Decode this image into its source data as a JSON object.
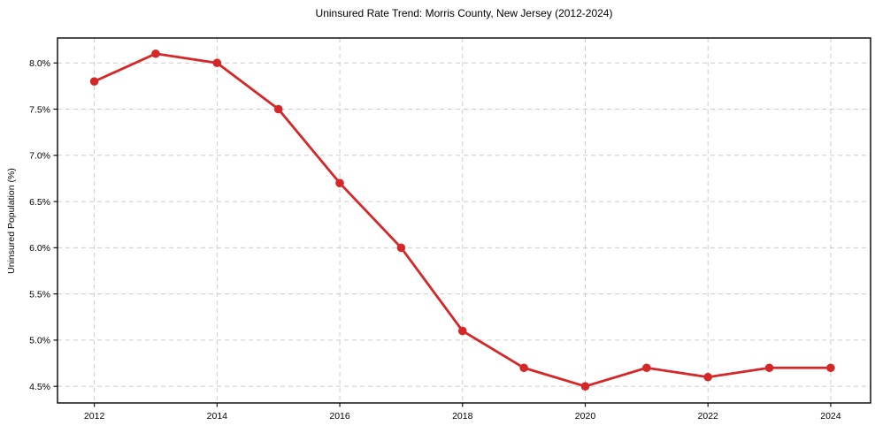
{
  "chart_data": {
    "type": "line",
    "title": "Uninsured Rate Trend: Morris County, New Jersey (2012-2024)",
    "xlabel": "",
    "ylabel": "Uninsured Population (%)",
    "x": [
      2012,
      2013,
      2014,
      2015,
      2016,
      2017,
      2018,
      2019,
      2020,
      2021,
      2022,
      2023,
      2024
    ],
    "series": [
      {
        "name": "Uninsured Rate",
        "values": [
          7.8,
          8.1,
          8.0,
          7.5,
          6.7,
          6.0,
          5.1,
          4.7,
          4.5,
          4.7,
          4.6,
          4.7,
          4.7
        ]
      }
    ],
    "xlim": [
      2011.4,
      2024.65
    ],
    "ylim": [
      4.32,
      8.27
    ],
    "xticks": {
      "values": [
        2012,
        2014,
        2016,
        2018,
        2020,
        2022,
        2024
      ],
      "labels": [
        "2012",
        "2014",
        "2016",
        "2018",
        "2020",
        "2022",
        "2024"
      ]
    },
    "yticks": {
      "values": [
        4.5,
        5.0,
        5.5,
        6.0,
        6.5,
        7.0,
        7.5,
        8.0
      ],
      "labels": [
        "4.5%",
        "5.0%",
        "5.5%",
        "6.0%",
        "6.5%",
        "7.0%",
        "7.5%",
        "8.0%"
      ]
    },
    "grid": true,
    "legend_position": "none",
    "colors": {
      "line": "#d62728",
      "marker": "#d62728",
      "grid": "#cccccc",
      "spine": "#000000",
      "tick": "#000000",
      "background": "#ffffff"
    }
  }
}
